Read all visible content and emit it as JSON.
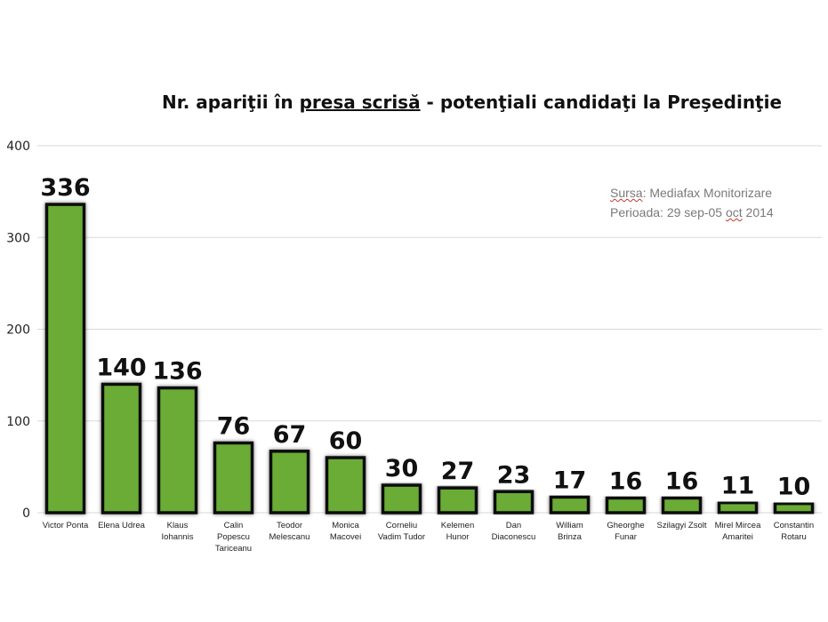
{
  "title": {
    "prefix": "Nr. apariţii în ",
    "underlined": "presa scrisă",
    "suffix": "  - potenţiali candidaţi la Preşedinţie"
  },
  "source": {
    "label": "Sursa",
    "text": ": Mediafax Monitorizare",
    "period_prefix": "Perioada: 29 sep-05 ",
    "period_underlined": "oct",
    "period_suffix": " 2014"
  },
  "colors": {
    "bar_fill": "#6aac34",
    "bar_border": "#111111",
    "grid": "#d9d9d9",
    "axis_text": "#222222"
  },
  "chart_data": {
    "type": "bar",
    "title": "Nr. apariţii în presa scrisă  - potenţiali candidaţi la Preşedinţie",
    "categories": [
      [
        "Victor Ponta"
      ],
      [
        "Elena Udrea"
      ],
      [
        "Klaus",
        "Iohannis"
      ],
      [
        "Calin",
        "Popescu",
        "Tariceanu"
      ],
      [
        "Teodor",
        "Melescanu"
      ],
      [
        "Monica",
        "Macovei"
      ],
      [
        "Corneliu",
        "Vadim Tudor"
      ],
      [
        "Kelemen",
        "Hunor"
      ],
      [
        "Dan",
        "Diaconescu"
      ],
      [
        "William",
        "Brinza"
      ],
      [
        "Gheorghe",
        "Funar"
      ],
      [
        "Szilagyi Zsolt"
      ],
      [
        "Mirel Mircea",
        "Amaritei"
      ],
      [
        "Constantin",
        "Rotaru"
      ]
    ],
    "values": [
      336,
      140,
      136,
      76,
      67,
      60,
      30,
      27,
      23,
      17,
      16,
      16,
      11,
      10
    ],
    "ylim": [
      0,
      400
    ],
    "yticks": [
      "0",
      "100",
      "200",
      "300",
      "400"
    ],
    "grid": true,
    "legend": "none"
  }
}
